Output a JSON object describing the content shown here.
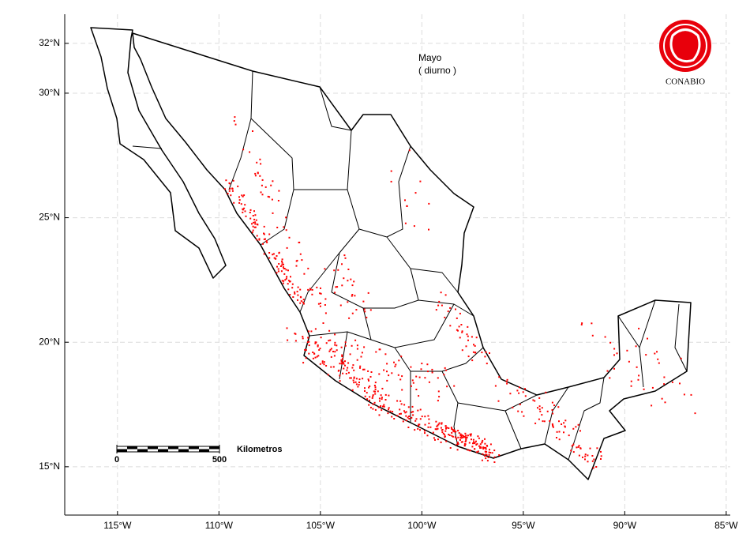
{
  "map": {
    "title": "Mayo",
    "subtitle": "( diurno )",
    "logo": "CONABIO",
    "xlim": [
      -117.6,
      -84.8
    ],
    "ylim": [
      13.06,
      33.17
    ],
    "xticks": [
      {
        "value": -115,
        "label": "115°W"
      },
      {
        "value": -110,
        "label": "110°W"
      },
      {
        "value": -105,
        "label": "105°W"
      },
      {
        "value": -100,
        "label": "100°W"
      },
      {
        "value": -95,
        "label": "95°W"
      },
      {
        "value": -90,
        "label": "90°W"
      },
      {
        "value": -85,
        "label": "85°W"
      }
    ],
    "yticks": [
      {
        "value": 15,
        "label": "15°N"
      },
      {
        "value": 20,
        "label": "20°N"
      },
      {
        "value": 25,
        "label": "25°N"
      },
      {
        "value": 30,
        "label": "30°N"
      },
      {
        "value": 32,
        "label": "32°N"
      }
    ],
    "grid": true,
    "point_color": "#ff0000",
    "scale_bar": {
      "label": "Kilometros",
      "ticks": [
        0,
        500
      ]
    }
  }
}
